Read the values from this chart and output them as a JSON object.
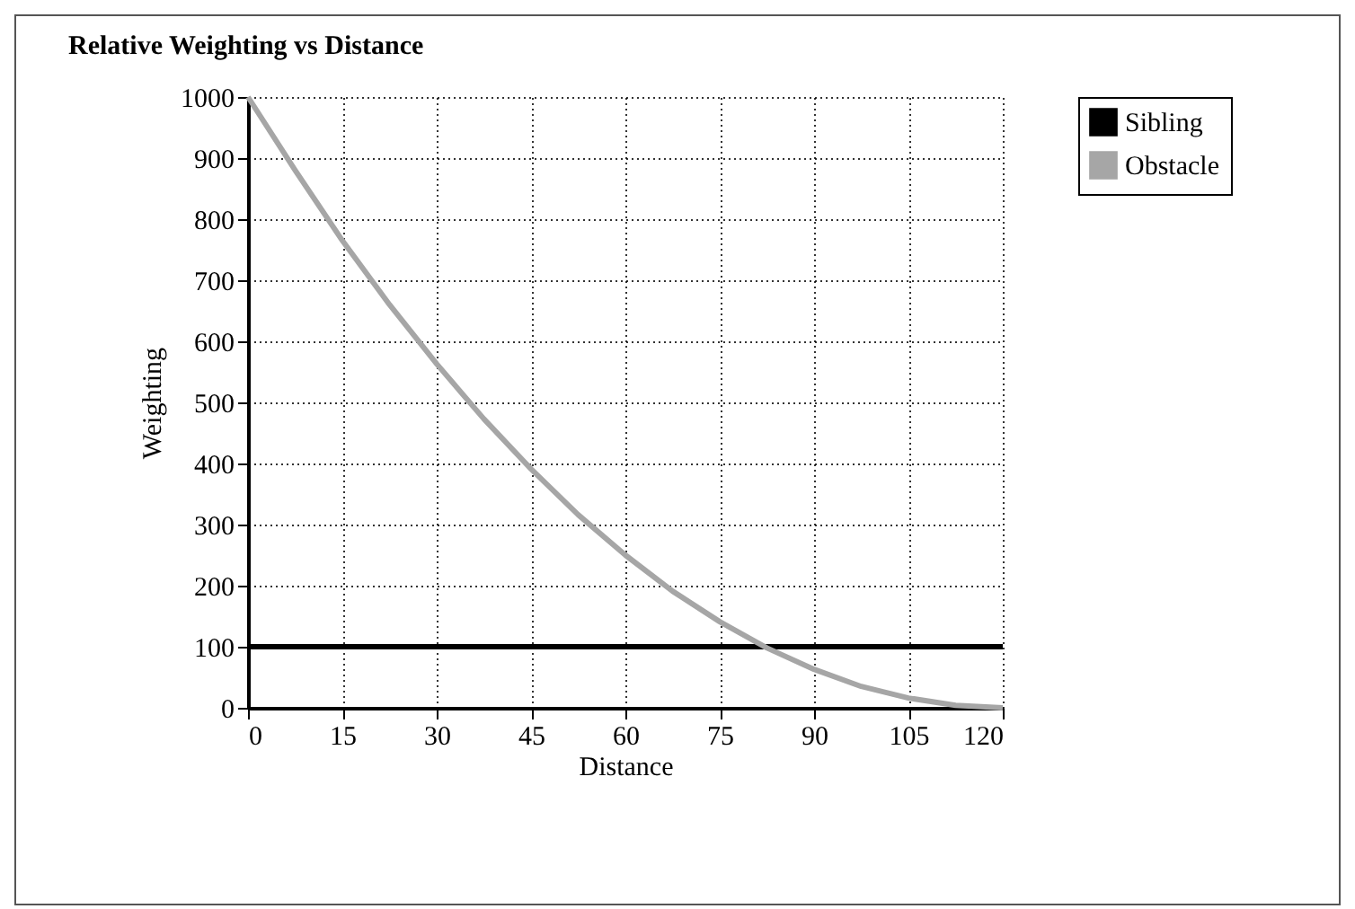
{
  "chart_data": {
    "type": "line",
    "title": "Relative Weighting vs Distance",
    "xlabel": "Distance",
    "ylabel": "Weighting",
    "x": [
      0,
      7.5,
      15,
      22.5,
      30,
      37.5,
      45,
      52.5,
      60,
      67.5,
      75,
      82.5,
      90,
      97.5,
      105,
      112.5,
      120
    ],
    "series": [
      {
        "name": "Sibling",
        "color": "#000000",
        "values": [
          100,
          100,
          100,
          100,
          100,
          100,
          100,
          100,
          100,
          100,
          100,
          100,
          100,
          100,
          100,
          100,
          100
        ]
      },
      {
        "name": "Obstacle",
        "color": "#a6a6a6",
        "values": [
          1000,
          880,
          765,
          660,
          563,
          473,
          391,
          316,
          250,
          191,
          141,
          98,
          63,
          35,
          16,
          4,
          0
        ]
      }
    ],
    "xlim": [
      0,
      120
    ],
    "xticks": [
      0,
      15,
      30,
      45,
      60,
      75,
      90,
      105,
      120
    ],
    "ylim": [
      0,
      1000
    ],
    "yticks": [
      0,
      100,
      200,
      300,
      400,
      500,
      600,
      700,
      800,
      900,
      1000
    ],
    "grid": true,
    "legend": "top right",
    "marker": "none",
    "line_style": "solid"
  }
}
